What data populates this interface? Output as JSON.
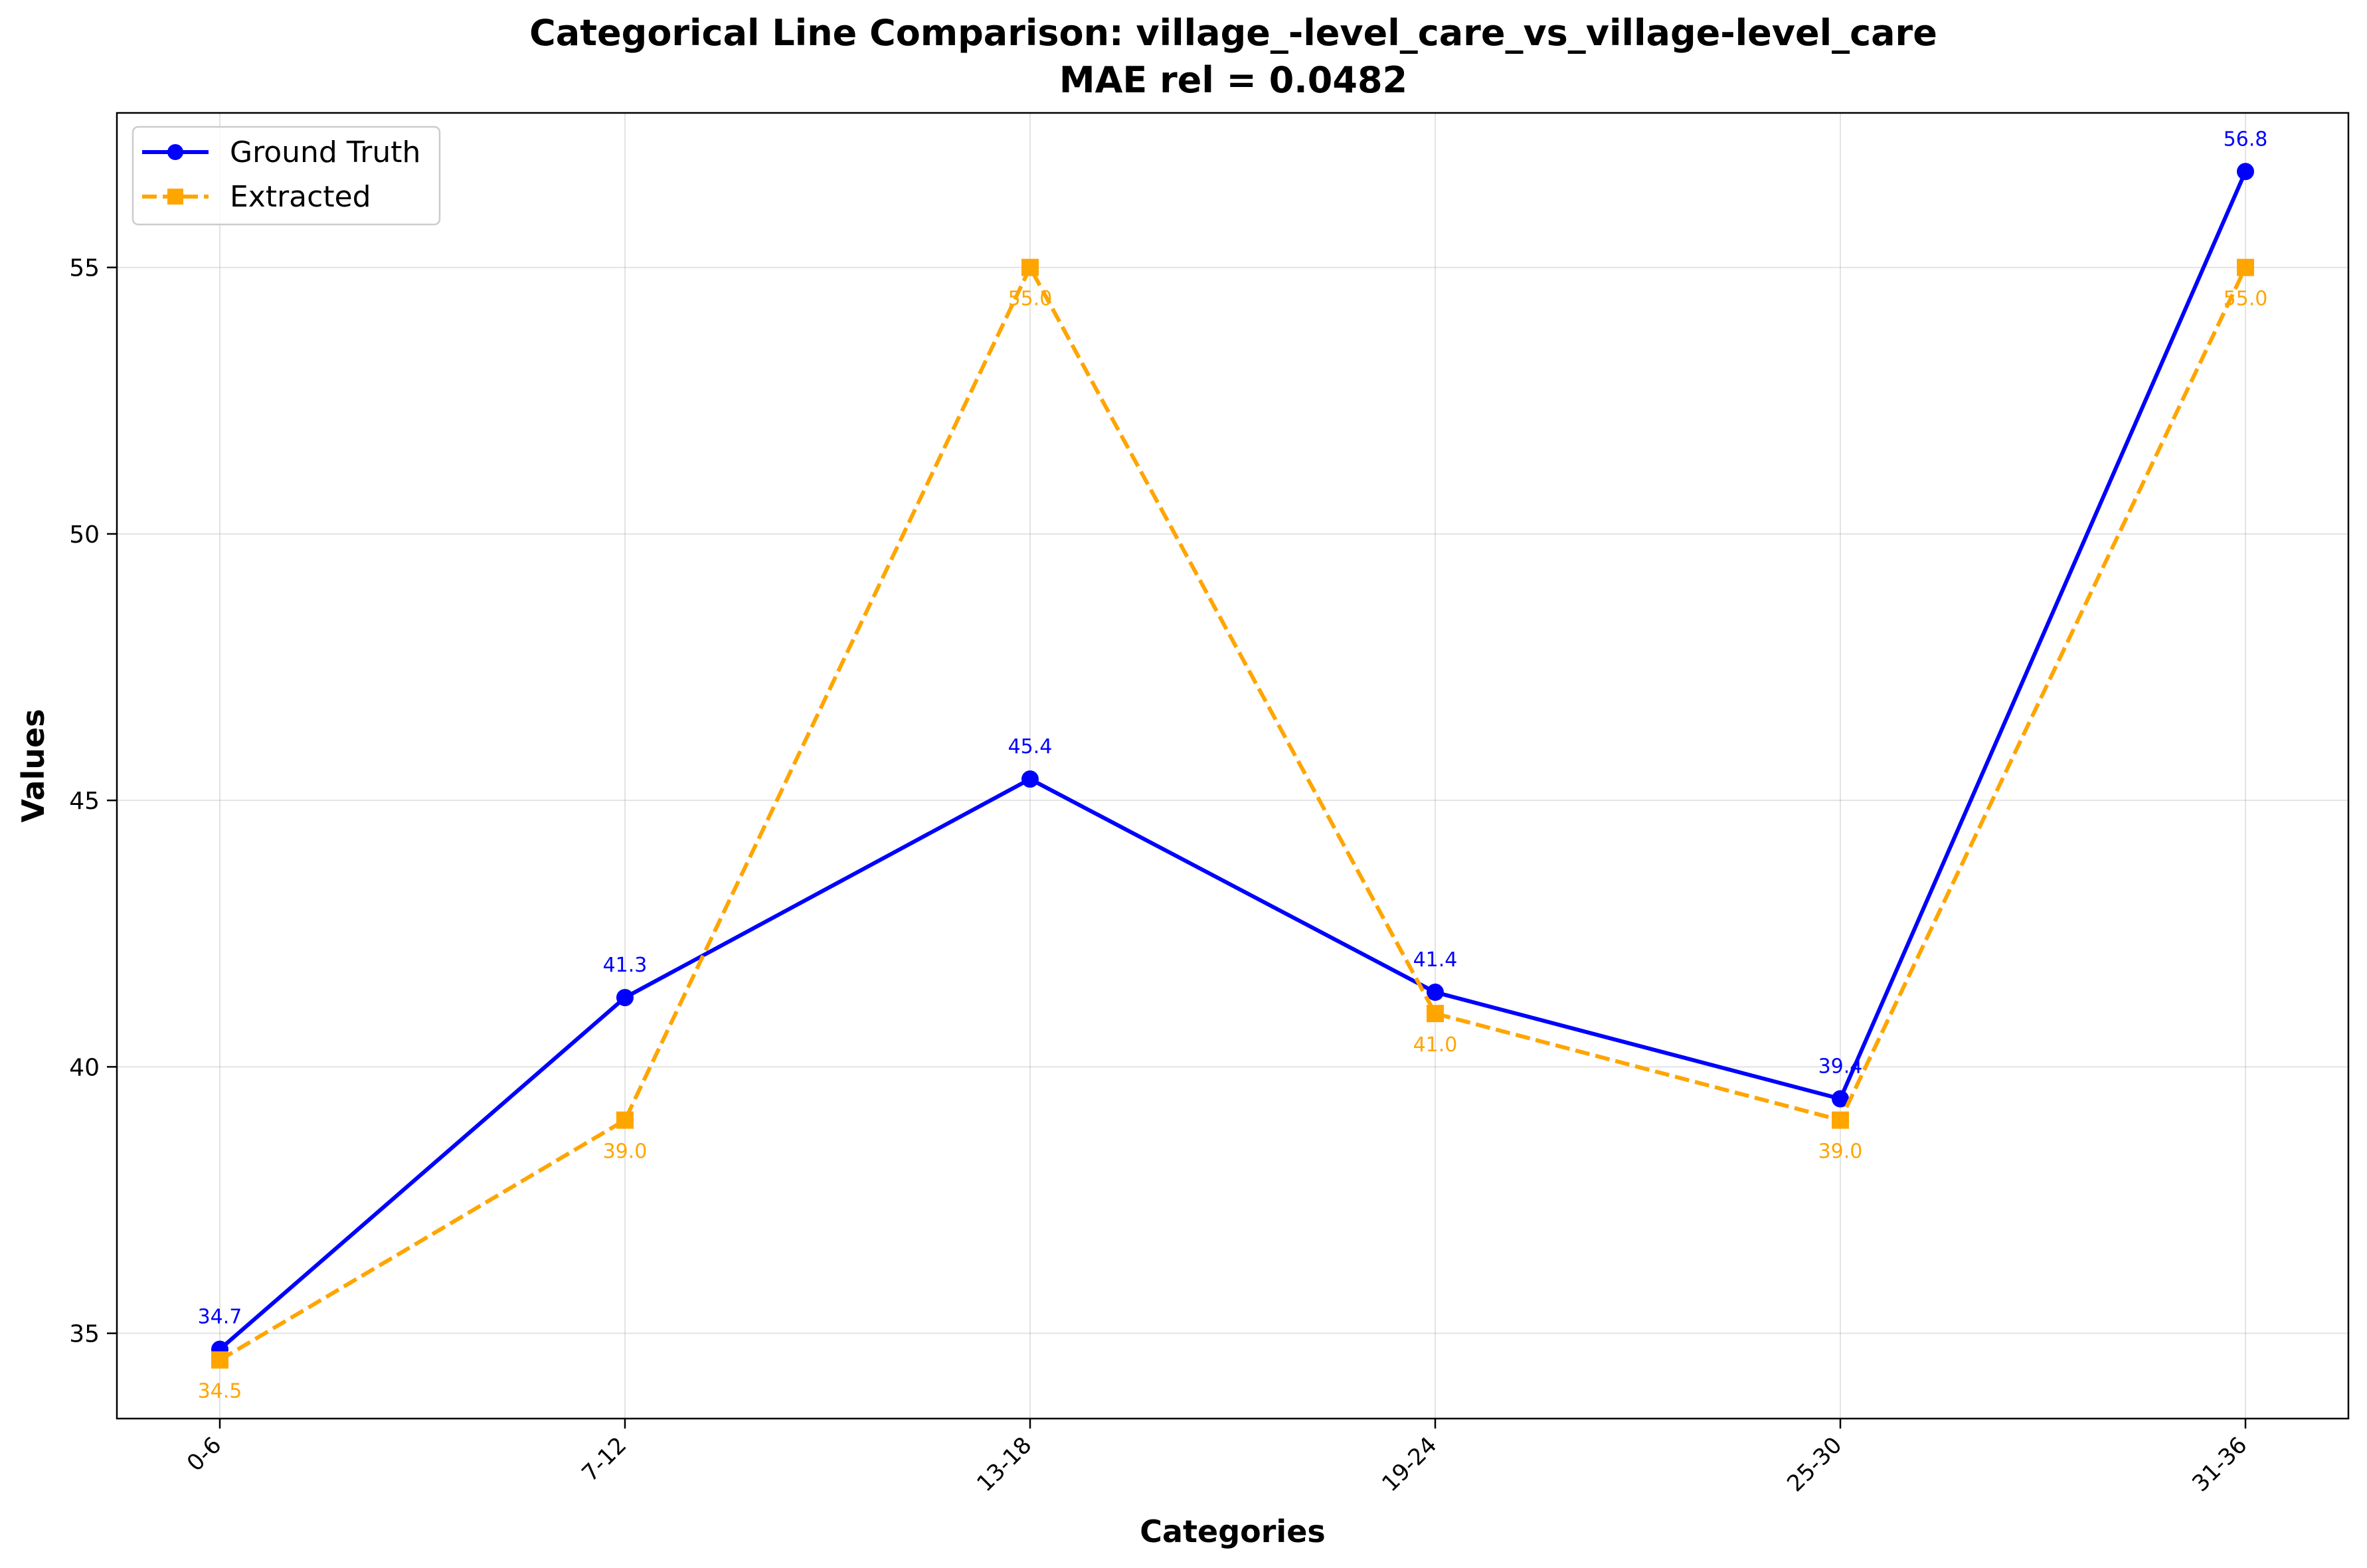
{
  "chart_data": {
    "type": "line",
    "title": "Categorical Line Comparison: village_-level_care_vs_village-level_care",
    "subtitle": "MAE rel = 0.0482",
    "xlabel": "Categories",
    "ylabel": "Values",
    "categories": [
      "0-6",
      "7-12",
      "13-18",
      "19-24",
      "25-30",
      "31-36"
    ],
    "ylim": [
      33.4,
      57.9
    ],
    "yticks": [
      35,
      40,
      45,
      50,
      55
    ],
    "grid": true,
    "legend_position": "top-left",
    "series": [
      {
        "name": "Ground Truth",
        "values": [
          34.7,
          41.3,
          45.4,
          41.4,
          39.4,
          56.8
        ],
        "labels": [
          "34.7",
          "41.3",
          "45.4",
          "41.4",
          "39.4",
          "56.8"
        ],
        "color": "#0000ff",
        "line_style": "solid",
        "marker": "circle"
      },
      {
        "name": "Extracted",
        "values": [
          34.5,
          39.0,
          55.0,
          41.0,
          39.0,
          55.0
        ],
        "labels": [
          "34.5",
          "39.0",
          "55.0",
          "41.0",
          "39.0",
          "55.0"
        ],
        "color": "#ffa500",
        "line_style": "dashed",
        "marker": "square"
      }
    ]
  }
}
